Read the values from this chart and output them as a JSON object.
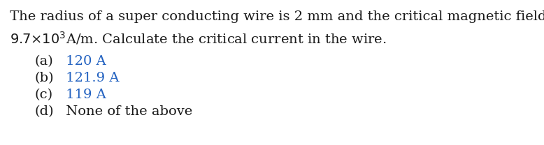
{
  "background_color": "#ffffff",
  "main_text_line1": "The radius of a super conducting wire is 2 mm and the critical magnetic field is",
  "main_text_color": "#1a1a1a",
  "option_label_color": "#1a1a1a",
  "option_abc_color": "#2060c0",
  "option_d_color": "#1a1a1a",
  "main_fontsize": 14.0,
  "option_fontsize": 14.0,
  "options": [
    {
      "label": "(a)",
      "answer": " 120 A",
      "colored": true
    },
    {
      "label": "(b)",
      "answer": " 121.9 A",
      "colored": true
    },
    {
      "label": "(c)",
      "answer": " 119 A",
      "colored": true
    },
    {
      "label": "(d)",
      "answer": " None of the above",
      "colored": false
    }
  ],
  "fig_width": 7.78,
  "fig_height": 2.08,
  "dpi": 100
}
